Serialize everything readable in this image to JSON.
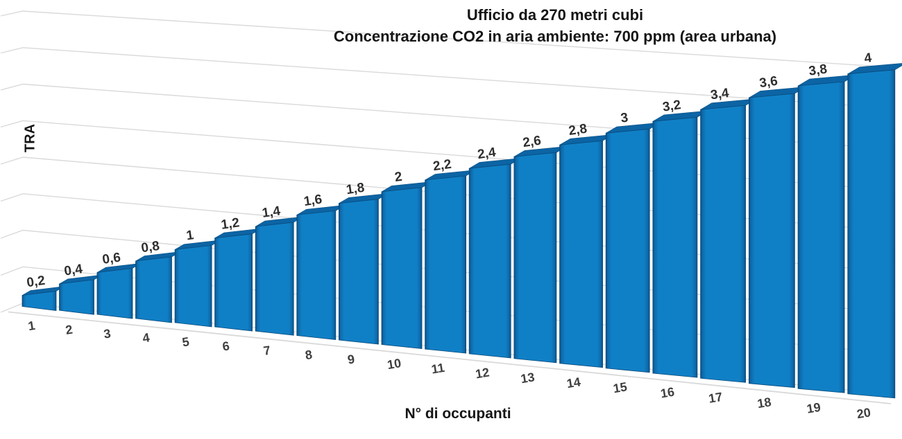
{
  "chart_data": {
    "type": "bar",
    "projection": "3d-perspective",
    "title": "Ufficio da 270 metri cubi",
    "subtitle": "Concentrazione CO2 in aria ambiente: 700 ppm (area urbana)",
    "xlabel": "N° di occupanti",
    "ylabel": "TRA",
    "categories": [
      "1",
      "2",
      "3",
      "4",
      "5",
      "6",
      "7",
      "8",
      "9",
      "10",
      "11",
      "12",
      "13",
      "14",
      "15",
      "16",
      "17",
      "18",
      "19",
      "20"
    ],
    "values": [
      0.2,
      0.4,
      0.6,
      0.8,
      1,
      1.2,
      1.4,
      1.6,
      1.8,
      2,
      2.2,
      2.4,
      2.6,
      2.8,
      3,
      3.2,
      3.4,
      3.6,
      3.8,
      4
    ],
    "value_labels": [
      "0,2",
      "0,4",
      "0,6",
      "0,8",
      "1",
      "1,2",
      "1,4",
      "1,6",
      "1,8",
      "2",
      "2,2",
      "2,4",
      "2,6",
      "2,8",
      "3",
      "3,2",
      "3,4",
      "3,6",
      "3,8",
      "4"
    ],
    "decimal_separator": ",",
    "ylim": [
      0,
      4
    ],
    "grid_values": [
      0,
      0.5,
      1,
      1.5,
      2,
      2.5,
      3,
      3.5,
      4
    ],
    "grid": "on",
    "legend": "none",
    "colors": {
      "bar_front": "#1080C6",
      "bar_edge": "#0A5186",
      "bar_edge_mid": "#0E6CAE",
      "bar_top": "#0C64A4",
      "bar_stroke": "#084B7D",
      "gridline": "#D9D9D9",
      "value_label": "#2E2E2E",
      "category_label": "#3F3F3F",
      "title": "#151515"
    }
  }
}
